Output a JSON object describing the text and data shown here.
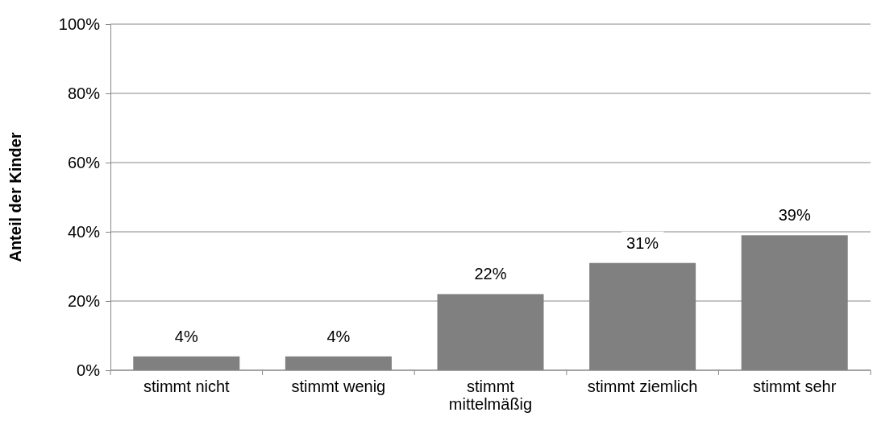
{
  "chart_data": {
    "type": "bar",
    "ylabel": "Anteil der Kinder",
    "categories": [
      "stimmt nicht",
      "stimmt wenig",
      "stimmt mittelmäßig",
      "stimmt ziemlich",
      "stimmt sehr"
    ],
    "values": [
      4,
      4,
      22,
      31,
      39
    ],
    "value_labels": [
      "4%",
      "4%",
      "22%",
      "31%",
      "39%"
    ],
    "color": "#808080",
    "ylim": [
      0,
      100
    ],
    "yticks": [
      {
        "value": 0,
        "label": "0%"
      },
      {
        "value": 20,
        "label": "20%"
      },
      {
        "value": 40,
        "label": "40%"
      },
      {
        "value": 60,
        "label": "60%"
      },
      {
        "value": 80,
        "label": "80%"
      },
      {
        "value": 100,
        "label": "100%"
      }
    ],
    "grid": "y"
  }
}
